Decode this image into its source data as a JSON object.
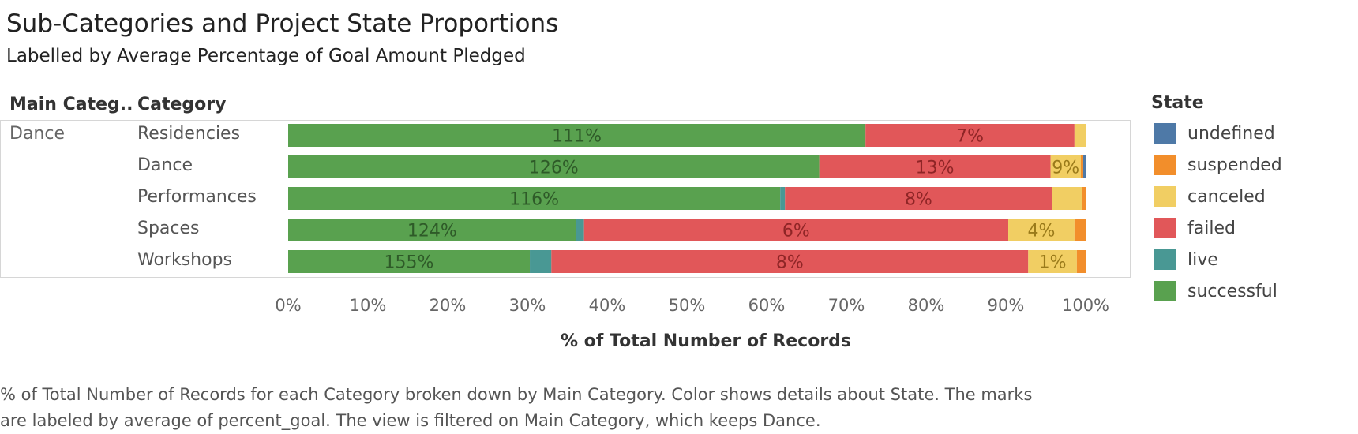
{
  "title": "Sub-Categories and Project State Proportions",
  "subtitle": "Labelled by Average Percentage of Goal Amount Pledged",
  "headers": {
    "main_category": "Main Categ..",
    "category": "Category"
  },
  "main_category_value": "Dance",
  "caption_line1": "% of Total Number of Records for each Category broken down by Main Category.  Color shows details about State.  The marks",
  "caption_line2": "are labeled by average of percent_goal. The view is filtered on Main Category, which keeps Dance.",
  "legend": {
    "title": "State",
    "items": [
      {
        "label": "undefined",
        "color": "#4e79a7"
      },
      {
        "label": "suspended",
        "color": "#f28e2b"
      },
      {
        "label": "canceled",
        "color": "#f1ce63"
      },
      {
        "label": "failed",
        "color": "#e15759"
      },
      {
        "label": "live",
        "color": "#499894"
      },
      {
        "label": "successful",
        "color": "#59a14f"
      }
    ]
  },
  "chart_data": {
    "type": "bar",
    "orientation": "horizontal",
    "stacked": true,
    "xlabel": "% of Total Number of Records",
    "xlim": [
      0,
      100
    ],
    "xticks": [
      "0%",
      "10%",
      "20%",
      "30%",
      "40%",
      "50%",
      "60%",
      "70%",
      "80%",
      "90%",
      "100%"
    ],
    "legend_position": "right",
    "categories": [
      "Residencies",
      "Dance",
      "Performances",
      "Spaces",
      "Workshops"
    ],
    "series": [
      {
        "name": "successful",
        "color": "#59a14f",
        "label_color": "#2e5a28",
        "values": [
          72.4,
          66.6,
          61.7,
          36.1,
          30.3
        ],
        "labels": [
          "111%",
          "126%",
          "116%",
          "124%",
          "155%"
        ]
      },
      {
        "name": "live",
        "color": "#499894",
        "label_color": "#1f4a47",
        "values": [
          0,
          0,
          0.6,
          1.0,
          2.7
        ],
        "labels": [
          "",
          "",
          "",
          "",
          ""
        ]
      },
      {
        "name": "failed",
        "color": "#e15759",
        "label_color": "#8f2526",
        "values": [
          26.2,
          29.0,
          33.5,
          53.2,
          59.8
        ],
        "labels": [
          "7%",
          "13%",
          "8%",
          "6%",
          "8%"
        ]
      },
      {
        "name": "canceled",
        "color": "#f1ce63",
        "label_color": "#9a7a1a",
        "values": [
          1.4,
          3.8,
          3.8,
          8.3,
          6.1
        ],
        "labels": [
          "",
          "9%",
          "",
          "4%",
          "1%"
        ]
      },
      {
        "name": "suspended",
        "color": "#f28e2b",
        "label_color": "#8a4a10",
        "values": [
          0,
          0.3,
          0.4,
          1.4,
          1.1
        ],
        "labels": [
          "",
          "",
          "",
          "",
          ""
        ]
      },
      {
        "name": "undefined",
        "color": "#4e79a7",
        "label_color": "#2a4460",
        "values": [
          0,
          0.3,
          0,
          0,
          0
        ],
        "labels": [
          "",
          "",
          "",
          "",
          ""
        ]
      }
    ]
  }
}
